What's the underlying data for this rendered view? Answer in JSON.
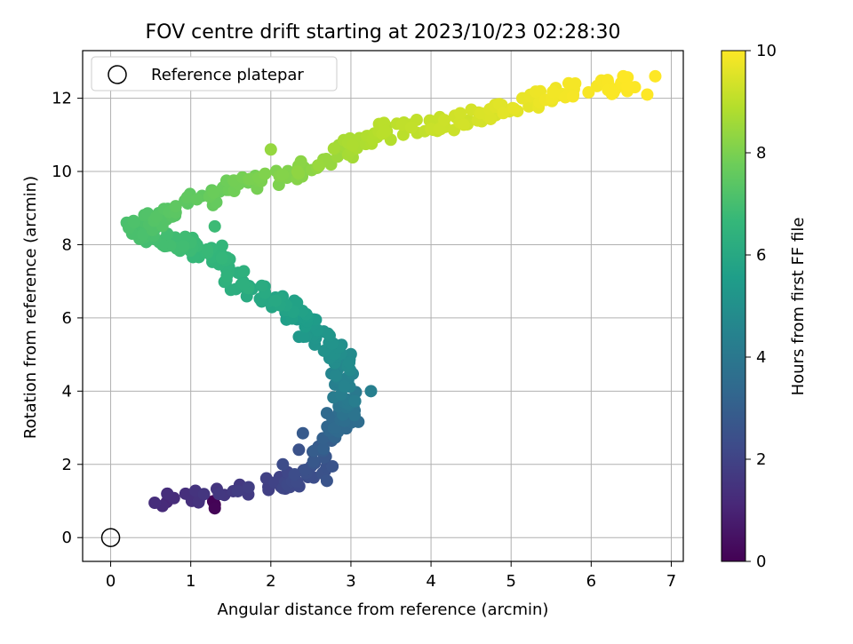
{
  "chart_data": {
    "type": "scatter",
    "title": "FOV centre drift starting at 2023/10/23 02:28:30",
    "xlabel": "Angular distance from reference (arcmin)",
    "ylabel": "Rotation from reference (arcmin)",
    "xlim": [
      -0.35,
      7.15
    ],
    "ylim": [
      -0.65,
      13.3
    ],
    "xticks": [
      0,
      1,
      2,
      3,
      4,
      5,
      6,
      7
    ],
    "yticks": [
      0,
      2,
      4,
      6,
      8,
      10,
      12
    ],
    "grid": true,
    "legend": {
      "position": "top-left",
      "entries": [
        "Reference platepar"
      ]
    },
    "reference_point": {
      "x": 0,
      "y": 0,
      "label": "Reference platepar"
    },
    "colorbar": {
      "label": "Hours from first FF file",
      "range": [
        0,
        10
      ],
      "ticks": [
        0,
        2,
        4,
        6,
        8,
        10
      ],
      "colormap": "viridis"
    },
    "path_nodes": [
      {
        "x": 1.3,
        "y": 0.9,
        "h": 0.0
      },
      {
        "x": 0.6,
        "y": 0.95,
        "h": 1.2
      },
      {
        "x": 2.1,
        "y": 1.5,
        "h": 2.0
      },
      {
        "x": 2.6,
        "y": 1.8,
        "h": 2.5
      },
      {
        "x": 2.75,
        "y": 2.9,
        "h": 3.2
      },
      {
        "x": 3.0,
        "y": 3.3,
        "h": 3.6
      },
      {
        "x": 2.9,
        "y": 4.0,
        "h": 4.3
      },
      {
        "x": 2.9,
        "y": 5.0,
        "h": 4.9
      },
      {
        "x": 2.5,
        "y": 5.6,
        "h": 5.3
      },
      {
        "x": 2.2,
        "y": 6.4,
        "h": 5.8
      },
      {
        "x": 1.6,
        "y": 7.0,
        "h": 6.3
      },
      {
        "x": 1.25,
        "y": 7.8,
        "h": 6.6
      },
      {
        "x": 0.8,
        "y": 8.1,
        "h": 6.9
      },
      {
        "x": 0.3,
        "y": 8.4,
        "h": 7.1
      },
      {
        "x": 0.8,
        "y": 9.0,
        "h": 7.4
      },
      {
        "x": 1.5,
        "y": 9.6,
        "h": 7.8
      },
      {
        "x": 2.3,
        "y": 10.0,
        "h": 8.2
      },
      {
        "x": 3.0,
        "y": 10.7,
        "h": 8.7
      },
      {
        "x": 3.6,
        "y": 11.2,
        "h": 9.0
      },
      {
        "x": 4.4,
        "y": 11.4,
        "h": 9.3
      },
      {
        "x": 5.0,
        "y": 11.8,
        "h": 9.6
      },
      {
        "x": 5.7,
        "y": 12.2,
        "h": 9.85
      },
      {
        "x": 6.5,
        "y": 12.4,
        "h": 10.0
      }
    ],
    "extra_points": [
      {
        "x": 0.55,
        "y": 0.95,
        "h": 1.3
      },
      {
        "x": 0.7,
        "y": 0.97,
        "h": 1.1
      },
      {
        "x": 1.28,
        "y": 0.99,
        "h": 0.05
      },
      {
        "x": 1.3,
        "y": 0.8,
        "h": 0.1
      },
      {
        "x": 2.05,
        "y": 1.5,
        "h": 2.0
      },
      {
        "x": 2.15,
        "y": 1.35,
        "h": 2.1
      },
      {
        "x": 2.15,
        "y": 2.0,
        "h": 2.3
      },
      {
        "x": 2.35,
        "y": 2.4,
        "h": 2.5
      },
      {
        "x": 2.4,
        "y": 2.85,
        "h": 2.8
      },
      {
        "x": 2.7,
        "y": 1.55,
        "h": 2.6
      },
      {
        "x": 2.7,
        "y": 3.4,
        "h": 3.4
      },
      {
        "x": 3.25,
        "y": 4.0,
        "h": 4.3
      },
      {
        "x": 1.3,
        "y": 8.5,
        "h": 6.8
      },
      {
        "x": 0.2,
        "y": 8.6,
        "h": 7.1
      },
      {
        "x": 2.0,
        "y": 10.6,
        "h": 8.4
      },
      {
        "x": 6.8,
        "y": 12.6,
        "h": 10.0
      },
      {
        "x": 6.7,
        "y": 12.1,
        "h": 10.0
      },
      {
        "x": 6.4,
        "y": 12.6,
        "h": 10.0
      }
    ]
  }
}
